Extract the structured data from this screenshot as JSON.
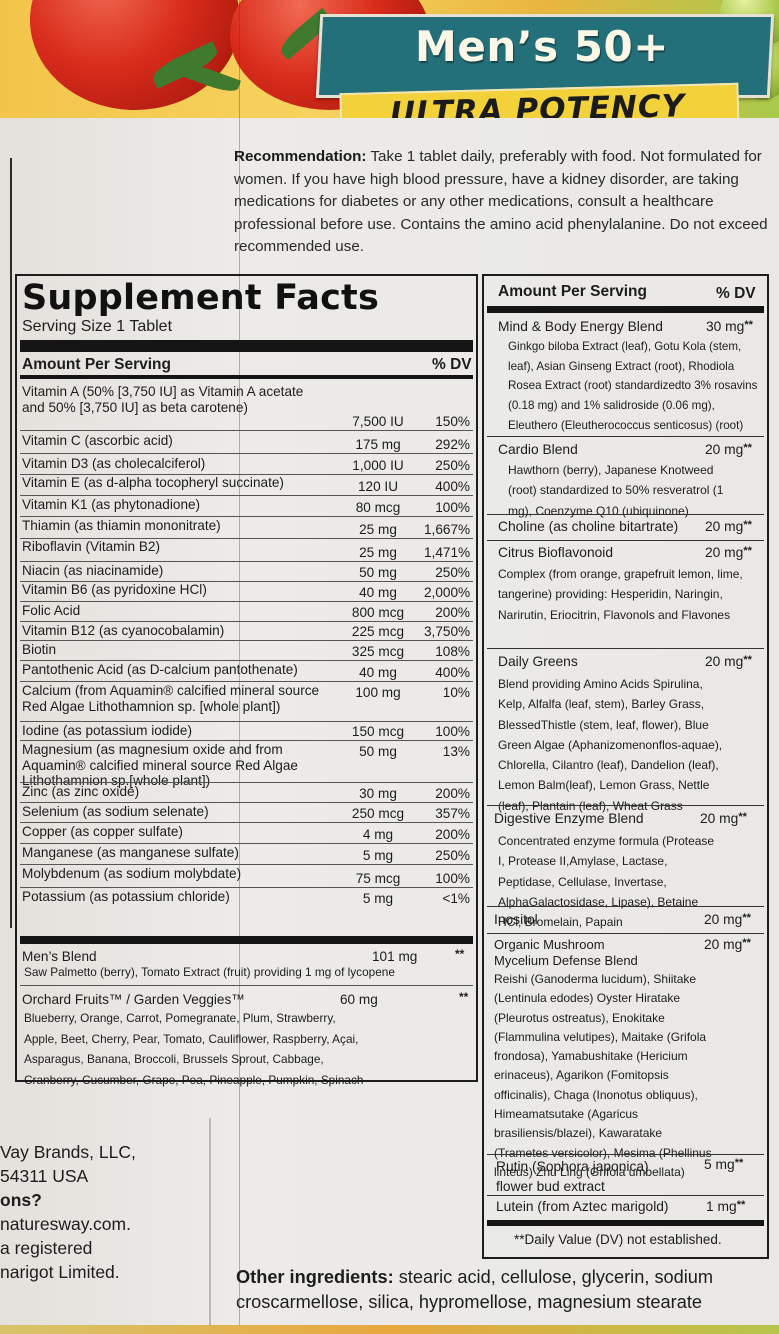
{
  "banner": {
    "title": "Men’s 50+",
    "subtitle": "ULTRA POTENCY"
  },
  "recommendation": {
    "label": "Recommendation:",
    "text": "Take 1 tablet daily, preferably with food. Not formulated for women. If you have high blood pressure, have a kidney disorder, are taking medications for diabetes or any other medications, consult a healthcare professional before use. Contains the amino acid phenylalanine. Do not exceed recommended use."
  },
  "facts": {
    "title": "Supplement Facts",
    "serving": "Serving Size 1 Tablet",
    "hdr_amount": "Amount Per Serving",
    "hdr_dv": "% DV",
    "rows": [
      {
        "name": "Vitamin A (50% [3,750 IU] as Vitamin A acetate and 50% [3,750 IU] as beta carotene)",
        "amount": "7,500 IU",
        "dv": "150%"
      },
      {
        "name": "Vitamin C (ascorbic acid)",
        "amount": "175 mg",
        "dv": "292%"
      },
      {
        "name": "Vitamin D3 (as cholecalciferol)",
        "amount": "1,000 IU",
        "dv": "250%"
      },
      {
        "name": "Vitamin E (as d-alpha tocopheryl succinate)",
        "amount": "120 IU",
        "dv": "400%"
      },
      {
        "name": "Vitamin K1 (as phytonadione)",
        "amount": "80 mcg",
        "dv": "100%"
      },
      {
        "name": "Thiamin (as thiamin mononitrate)",
        "amount": "25 mg",
        "dv": "1,667%"
      },
      {
        "name": "Riboflavin (Vitamin B2)",
        "amount": "25 mg",
        "dv": "1,471%"
      },
      {
        "name": "Niacin (as niacinamide)",
        "amount": "50 mg",
        "dv": "250%"
      },
      {
        "name": "Vitamin B6 (as pyridoxine HCl)",
        "amount": "40 mg",
        "dv": "2,000%"
      },
      {
        "name": "Folic Acid",
        "amount": "800 mcg",
        "dv": "200%"
      },
      {
        "name": "Vitamin B12 (as cyanocobalamin)",
        "amount": "225 mcg",
        "dv": "3,750%"
      },
      {
        "name": "Biotin",
        "amount": "325 mcg",
        "dv": "108%"
      },
      {
        "name": "Pantothenic Acid (as D-calcium pantothenate)",
        "amount": "40 mg",
        "dv": "400%"
      },
      {
        "name": "Calcium (from Aquamin® calcified mineral source Red Algae Lithothamnion sp.  [whole plant])",
        "amount": "100 mg",
        "dv": "10%"
      },
      {
        "name": "Iodine (as potassium iodide)",
        "amount": "150 mcg",
        "dv": "100%"
      },
      {
        "name": "Magnesium (as magnesium oxide and from Aquamin® calcified mineral source Red Algae Lithothamnion sp.[whole plant])",
        "amount": "50 mg",
        "dv": "13%"
      },
      {
        "name": "Zinc (as zinc oxide)",
        "amount": "30 mg",
        "dv": "200%"
      },
      {
        "name": "Selenium (as sodium selenate)",
        "amount": "250 mcg",
        "dv": "357%"
      },
      {
        "name": "Copper (as copper sulfate)",
        "amount": "4 mg",
        "dv": "200%"
      },
      {
        "name": "Manganese (as manganese sulfate)",
        "amount": "5 mg",
        "dv": "250%"
      },
      {
        "name": "Molybdenum (as sodium molybdate)",
        "amount": "75 mcg",
        "dv": "100%"
      },
      {
        "name": "Potassium (as potassium chloride)",
        "amount": "5 mg",
        "dv": "<1%"
      }
    ],
    "mens_blend": {
      "name": "Men’s Blend",
      "amount": "101 mg",
      "dv": "**",
      "desc": "Saw Palmetto (berry), Tomato Extract (fruit) providing 1 mg of lycopene"
    },
    "orchard": {
      "name": "Orchard Fruits™ / Garden Veggies™",
      "amount": "60 mg",
      "dv": "**",
      "desc": "Blueberry, Orange, Carrot, Pomegranate, Plum, Strawberry, Apple, Beet, Cherry, Pear, Tomato, Cauliflower, Raspberry, Açai, Asparagus, Banana, Broccoli, Brussels Sprout, Cabbage, Cranberry, Cucumber, Grape, Pea, Pineapple, Pumpkin, Spinach"
    }
  },
  "right": {
    "hdr_amount": "Amount Per Serving",
    "hdr_dv": "% DV",
    "items": [
      {
        "name": "Mind & Body Energy Blend",
        "amount": "30 mg",
        "dv": "**",
        "desc": "Ginkgo biloba Extract (leaf), Gotu Kola (stem, leaf), Asian Ginseng Extract (root), Rhodiola Rosea Extract (root) standardizedto 3% rosavins (0.18 mg) and 1% salidroside (0.06 mg), Eleuthero (Eleutherococcus senticosus) (root)"
      },
      {
        "name": "Cardio Blend",
        "amount": "20 mg",
        "dv": "**",
        "desc": "Hawthorn (berry), Japanese Knotweed (root) standardized to 50% resveratrol (1 mg), Coenzyme Q10 (ubiquinone)"
      },
      {
        "name": "Choline (as choline bitartrate)",
        "amount": "20 mg",
        "dv": "**",
        "desc": ""
      },
      {
        "name": "Citrus Bioflavonoid",
        "amount": "20 mg",
        "dv": "**",
        "desc": "Complex (from orange, grapefruit lemon, lime, tangerine) providing: Hesperidin, Naringin, Narirutin, Eriocitrin, Flavonols and Flavones"
      },
      {
        "name": "Daily Greens",
        "amount": "20 mg",
        "dv": "**",
        "desc": "Blend providing Amino Acids Spirulina, Kelp, Alfalfa (leaf, stem), Barley Grass, BlessedThistle (stem, leaf, flower), Blue Green Algae (Aphanizomenonflos-aquae), Chlorella, Cilantro (leaf), Dandelion (leaf), Lemon Balm(leaf), Lemon Grass, Nettle (leaf), Plantain (leaf), Wheat Grass"
      },
      {
        "name": "Digestive Enzyme Blend",
        "amount": "20 mg",
        "dv": "**",
        "desc": "Concentrated enzyme formula (Protease I, Protease II,Amylase, Lactase, Peptidase, Cellulase, Invertase, AlphaGalactosidase, Lipase), Betaine HCl, Bromelain, Papain"
      },
      {
        "name": "Inositol",
        "amount": "20 mg",
        "dv": "**",
        "desc": ""
      },
      {
        "name": "Organic Mushroom Mycelium Defense Blend",
        "amount": "20 mg",
        "dv": "**",
        "desc": "Reishi (Ganoderma lucidum), Shiitake (Lentinula edodes) Oyster Hiratake (Pleurotus ostreatus), Enokitake (Flammulina velutipes), Maitake (Grifola frondosa), Yamabushitake (Hericium erinaceus), Agarikon (Fomitopsis officinalis), Chaga (Inonotus obliquus), Himeamatsutake (Agaricus brasiliensis/blazei), Kawaratake (Trametes versicolor), Mesima (Phellinus linteus) Zhu Ling (Grifola umbellata)"
      },
      {
        "name": "Rutin (Sophora japonica) flower bud extract",
        "amount": "5 mg",
        "dv": "**",
        "desc": ""
      },
      {
        "name": "Lutein (from Aztec marigold)",
        "amount": "1 mg",
        "dv": "**",
        "desc": ""
      }
    ],
    "footnote": "**Daily Value (DV) not established."
  },
  "brand": {
    "l1": "Vay Brands, LLC,",
    "l2": " 54311 USA",
    "l3": "ons?",
    "l4": "naturesway.com.",
    "l5": "a registered",
    "l6": "narigot Limited."
  },
  "other": {
    "label": "Other ingredients:",
    "text": "stearic acid, cellulose, glycerin, sodium croscarmellose, silica, hypromellose, magnesium stearate"
  }
}
